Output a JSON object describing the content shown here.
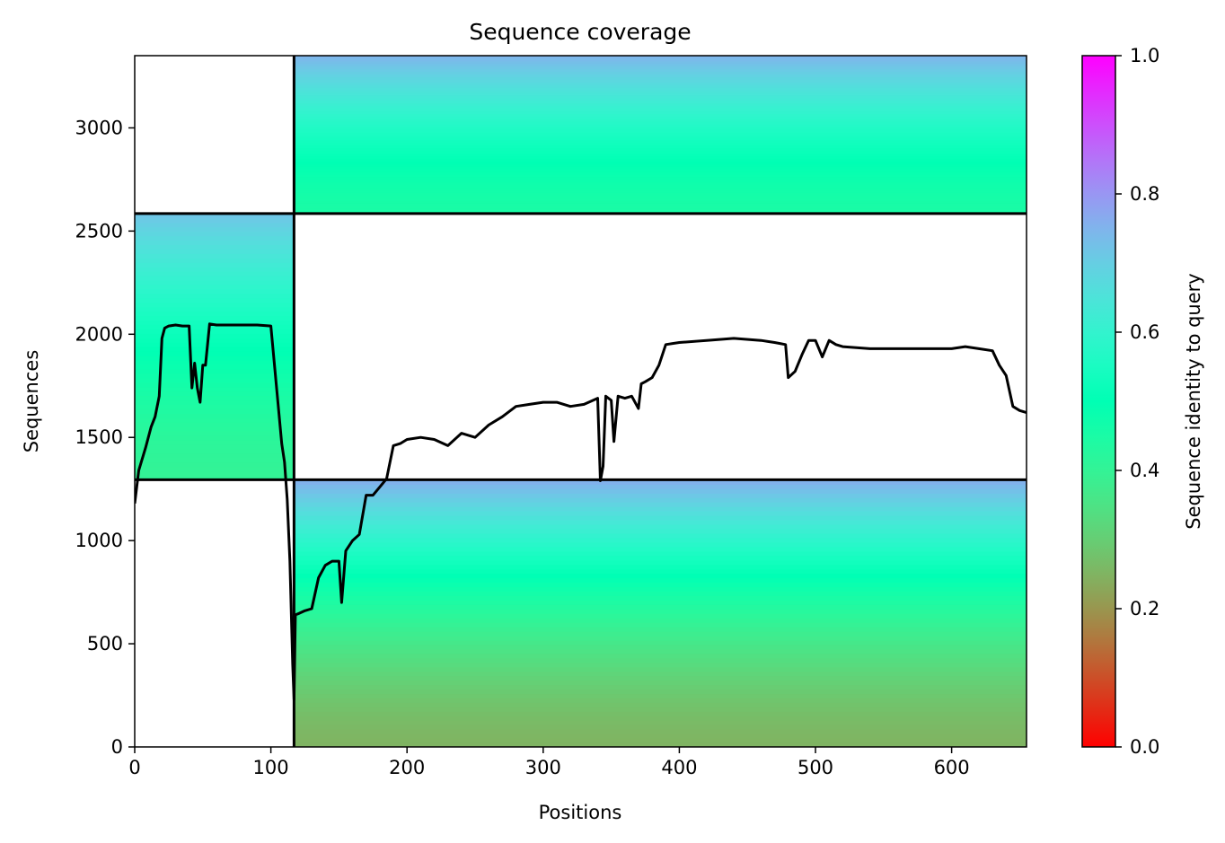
{
  "chart_data": {
    "type": "heatmap",
    "title": "Sequence coverage",
    "xlabel": "Positions",
    "ylabel": "Sequences",
    "xlim": [
      0,
      655
    ],
    "ylim": [
      0,
      3350
    ],
    "xticks": [
      "0",
      "100",
      "200",
      "300",
      "400",
      "500",
      "600"
    ],
    "yticks": [
      "0",
      "500",
      "1000",
      "1500",
      "2000",
      "2500",
      "3000"
    ],
    "grid": false,
    "colorbar": {
      "label": "Sequence identity to query",
      "range": [
        0,
        1
      ],
      "ticks": [
        "0.0",
        "0.2",
        "0.4",
        "0.6",
        "0.8",
        "1.0"
      ],
      "colormap": "rainbow_r"
    },
    "domain_boundaries": {
      "vertical_x": 117,
      "horizontal_y": [
        1295,
        2585
      ]
    },
    "blocks": [
      {
        "x0": 0,
        "x1": 117,
        "y0": 1295,
        "y1": 2585,
        "identity_bottom": 0.4,
        "identity_top": 0.72
      },
      {
        "x0": 117,
        "x1": 655,
        "y0": 2585,
        "y1": 3350,
        "identity_bottom": 0.45,
        "identity_top": 0.75
      },
      {
        "x0": 117,
        "x1": 655,
        "y0": 0,
        "y1": 1295,
        "identity_bottom": 0.25,
        "identity_top": 0.76
      }
    ],
    "coverage_line": {
      "x": [
        0,
        3,
        8,
        12,
        15,
        18,
        20,
        22,
        25,
        30,
        35,
        40,
        42,
        44,
        46,
        48,
        50,
        52,
        55,
        60,
        70,
        80,
        90,
        100,
        108,
        110,
        112,
        114,
        116,
        117,
        118,
        120,
        125,
        130,
        135,
        140,
        145,
        150,
        152,
        155,
        160,
        165,
        170,
        175,
        180,
        185,
        190,
        195,
        200,
        210,
        220,
        230,
        240,
        250,
        260,
        270,
        280,
        290,
        300,
        310,
        320,
        330,
        340,
        342,
        344,
        346,
        350,
        352,
        355,
        360,
        365,
        370,
        372,
        375,
        380,
        385,
        390,
        400,
        420,
        440,
        460,
        470,
        478,
        480,
        485,
        490,
        495,
        500,
        505,
        510,
        515,
        520,
        540,
        560,
        580,
        600,
        610,
        620,
        630,
        635,
        640,
        645,
        650,
        655
      ],
      "y": [
        1180,
        1340,
        1450,
        1550,
        1600,
        1700,
        1980,
        2030,
        2040,
        2045,
        2040,
        2040,
        1740,
        1860,
        1740,
        1670,
        1850,
        1850,
        2050,
        2045,
        2045,
        2045,
        2045,
        2040,
        1470,
        1380,
        1200,
        900,
        400,
        230,
        640,
        645,
        660,
        670,
        820,
        880,
        900,
        900,
        700,
        950,
        1000,
        1030,
        1220,
        1220,
        1260,
        1300,
        1460,
        1470,
        1490,
        1500,
        1490,
        1460,
        1520,
        1500,
        1560,
        1600,
        1650,
        1660,
        1670,
        1670,
        1650,
        1660,
        1690,
        1290,
        1360,
        1700,
        1680,
        1480,
        1700,
        1690,
        1700,
        1640,
        1760,
        1770,
        1790,
        1850,
        1950,
        1960,
        1970,
        1980,
        1970,
        1960,
        1950,
        1790,
        1820,
        1900,
        1970,
        1970,
        1890,
        1970,
        1950,
        1940,
        1930,
        1930,
        1930,
        1930,
        1940,
        1930,
        1920,
        1850,
        1800,
        1650,
        1630,
        1620
      ]
    }
  }
}
